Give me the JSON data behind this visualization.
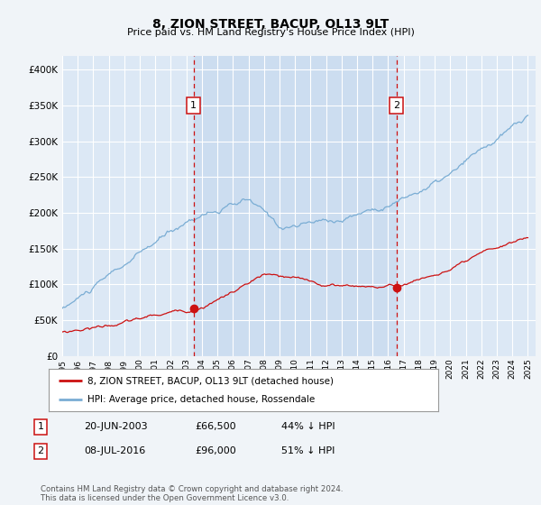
{
  "title": "8, ZION STREET, BACUP, OL13 9LT",
  "subtitle": "Price paid vs. HM Land Registry's House Price Index (HPI)",
  "background_color": "#f0f4f8",
  "plot_bg_color": "#dce8f5",
  "transaction1": {
    "date": "20-JUN-2003",
    "price": 66500,
    "pct": "44%",
    "label": "1",
    "year": 2003.47
  },
  "transaction2": {
    "date": "08-JUL-2016",
    "price": 96000,
    "pct": "51%",
    "label": "2",
    "year": 2016.53
  },
  "legend_line1": "8, ZION STREET, BACUP, OL13 9LT (detached house)",
  "legend_line2": "HPI: Average price, detached house, Rossendale",
  "footer": "Contains HM Land Registry data © Crown copyright and database right 2024.\nThis data is licensed under the Open Government Licence v3.0.",
  "ylim": [
    0,
    420000
  ],
  "yticks": [
    0,
    50000,
    100000,
    150000,
    200000,
    250000,
    300000,
    350000,
    400000
  ],
  "hpi_color": "#7aadd4",
  "price_color": "#cc1111",
  "shade_color": "#ccddf0"
}
